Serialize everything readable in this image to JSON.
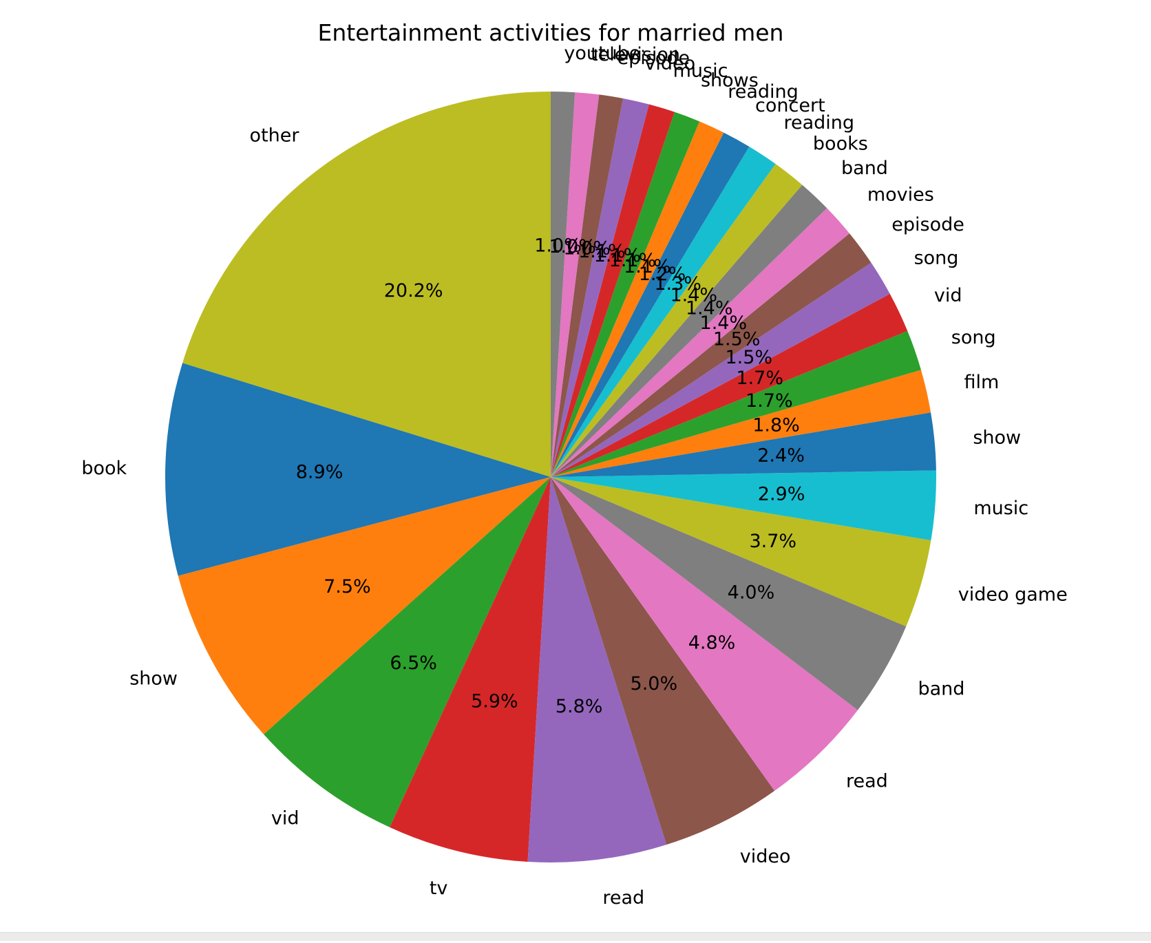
{
  "chart_data": {
    "type": "pie",
    "title": "Entertainment activities for married men",
    "start_angle_deg": 90,
    "direction": "counterclockwise",
    "slices": [
      {
        "label": "other",
        "value": 20.2,
        "pct_label": "20.2%",
        "color": "#bcbd22"
      },
      {
        "label": "book",
        "value": 8.9,
        "pct_label": "8.9%",
        "color": "#1f77b4"
      },
      {
        "label": "show",
        "value": 7.5,
        "pct_label": "7.5%",
        "color": "#ff7f0e"
      },
      {
        "label": "vid",
        "value": 6.5,
        "pct_label": "6.5%",
        "color": "#2ca02c"
      },
      {
        "label": "tv",
        "value": 5.9,
        "pct_label": "5.9%",
        "color": "#d62728"
      },
      {
        "label": "read",
        "value": 5.8,
        "pct_label": "5.8%",
        "color": "#9467bd"
      },
      {
        "label": "video",
        "value": 5.0,
        "pct_label": "5.0%",
        "color": "#8c564b"
      },
      {
        "label": "read",
        "value": 4.8,
        "pct_label": "4.8%",
        "color": "#e377c2"
      },
      {
        "label": "band",
        "value": 4.0,
        "pct_label": "4.0%",
        "color": "#7f7f7f"
      },
      {
        "label": "video game",
        "value": 3.7,
        "pct_label": "3.7%",
        "color": "#bcbd22"
      },
      {
        "label": "music",
        "value": 2.9,
        "pct_label": "2.9%",
        "color": "#17becf"
      },
      {
        "label": "show",
        "value": 2.4,
        "pct_label": "2.4%",
        "color": "#1f77b4"
      },
      {
        "label": "film",
        "value": 1.8,
        "pct_label": "1.8%",
        "color": "#ff7f0e"
      },
      {
        "label": "song",
        "value": 1.7,
        "pct_label": "1.7%",
        "color": "#2ca02c"
      },
      {
        "label": "vid",
        "value": 1.7,
        "pct_label": "1.7%",
        "color": "#d62728"
      },
      {
        "label": "song",
        "value": 1.5,
        "pct_label": "1.5%",
        "color": "#9467bd"
      },
      {
        "label": "episode",
        "value": 1.5,
        "pct_label": "1.5%",
        "color": "#8c564b"
      },
      {
        "label": "movies",
        "value": 1.4,
        "pct_label": "1.4%",
        "color": "#e377c2"
      },
      {
        "label": "band",
        "value": 1.4,
        "pct_label": "1.4%",
        "color": "#7f7f7f"
      },
      {
        "label": "books",
        "value": 1.4,
        "pct_label": "1.4%",
        "color": "#bcbd22"
      },
      {
        "label": "reading",
        "value": 1.3,
        "pct_label": "1.3%",
        "color": "#17becf"
      },
      {
        "label": "concert",
        "value": 1.2,
        "pct_label": "1.2%",
        "color": "#1f77b4"
      },
      {
        "label": "reading",
        "value": 1.1,
        "pct_label": "1.1%",
        "color": "#ff7f0e"
      },
      {
        "label": "shows",
        "value": 1.1,
        "pct_label": "1.1%",
        "color": "#2ca02c"
      },
      {
        "label": "music",
        "value": 1.1,
        "pct_label": "1.1%",
        "color": "#d62728"
      },
      {
        "label": "video",
        "value": 1.1,
        "pct_label": "1.1%",
        "color": "#9467bd"
      },
      {
        "label": "episode",
        "value": 1.0,
        "pct_label": "1.0%",
        "color": "#8c564b"
      },
      {
        "label": "television",
        "value": 1.0,
        "pct_label": "1.0%",
        "color": "#e377c2"
      },
      {
        "label": "youtube",
        "value": 1.0,
        "pct_label": "1.0%",
        "color": "#7f7f7f"
      }
    ]
  }
}
